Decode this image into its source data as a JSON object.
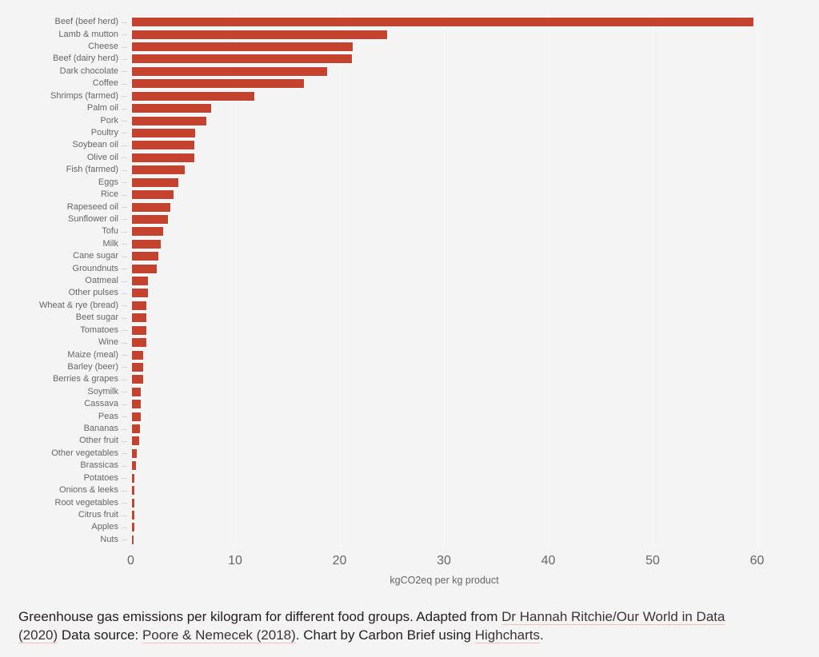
{
  "background_color": "#f4f4f4",
  "chart_data": {
    "type": "bar",
    "title": "",
    "xlabel": "kgCO2eq per kg product",
    "ylabel": "",
    "xlim": [
      0,
      60
    ],
    "xticks": [
      0,
      10,
      20,
      30,
      40,
      50,
      60
    ],
    "grid": true,
    "legend": false,
    "bar_color": "#c5432e",
    "bar_border_color": "#ffffff",
    "axis_color": "#ccd6eb",
    "gridline_color": "#ffffff",
    "tick_label_color": "#666666",
    "category_label_color": "#666666",
    "categories": [
      "Beef (beef herd)",
      "Lamb & mutton",
      "Cheese",
      "Beef (dairy herd)",
      "Dark chocolate",
      "Coffee",
      "Shrimps (farmed)",
      "Palm oil",
      "Pork",
      "Poultry",
      "Soybean oil",
      "Olive oil",
      "Fish (farmed)",
      "Eggs",
      "Rice",
      "Rapeseed oil",
      "Sunflower oil",
      "Tofu",
      "Milk",
      "Cane sugar",
      "Groundnuts",
      "Oatmeal",
      "Other pulses",
      "Wheat & rye (bread)",
      "Beet sugar",
      "Tomatoes",
      "Wine",
      "Maize (meal)",
      "Barley (beer)",
      "Berries & grapes",
      "Soymilk",
      "Cassava",
      "Peas",
      "Bananas",
      "Other fruit",
      "Other vegetables",
      "Brassicas",
      "Potatoes",
      "Onions & leeks",
      "Root vegetables",
      "Citrus fruit",
      "Apples",
      "Nuts"
    ],
    "values": [
      59.6,
      24.5,
      21.2,
      21.1,
      18.7,
      16.5,
      11.8,
      7.6,
      7.2,
      6.1,
      6.0,
      6.0,
      5.1,
      4.5,
      4.0,
      3.7,
      3.5,
      3.0,
      2.8,
      2.6,
      2.4,
      1.6,
      1.6,
      1.4,
      1.4,
      1.4,
      1.4,
      1.1,
      1.1,
      1.1,
      0.9,
      0.9,
      0.9,
      0.8,
      0.7,
      0.5,
      0.4,
      0.3,
      0.3,
      0.3,
      0.3,
      0.3,
      0.2
    ]
  },
  "caption": {
    "text_color": "#242021",
    "link_color": "#3d3236",
    "link_underline_color": "#f2c0b6",
    "segments": [
      {
        "text": "Greenhouse gas emissions per kilogram for different food groups. Adapted from ",
        "link": false
      },
      {
        "text": "Dr Hannah Ritchie/Our World in Data",
        "link": true,
        "name": "link-our-world-in-data"
      },
      {
        "br": true
      },
      {
        "text": "(2020)",
        "link": true,
        "name": "link-our-world-in-data-year"
      },
      {
        "text": " Data source: ",
        "link": false
      },
      {
        "text": "Poore & Nemecek (2018)",
        "link": true,
        "name": "link-poore-nemecek"
      },
      {
        "text": ". Chart by Carbon Brief using ",
        "link": false
      },
      {
        "text": "Highcharts",
        "link": true,
        "name": "link-highcharts"
      },
      {
        "text": ".",
        "link": false
      }
    ]
  }
}
